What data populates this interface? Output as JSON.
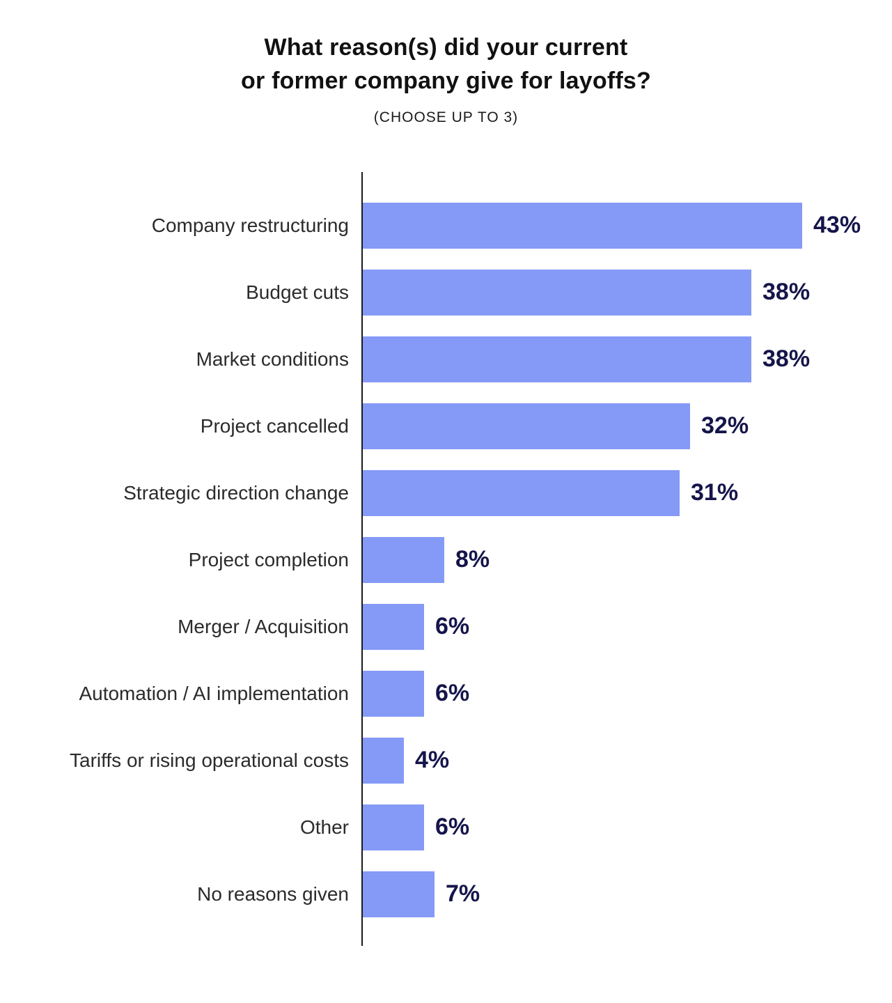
{
  "chart_data": {
    "type": "bar",
    "orientation": "horizontal",
    "title": "What reason(s) did your current\nor former company give for layoffs?",
    "subtitle": "(CHOOSE UP TO 3)",
    "categories": [
      "Company restructuring",
      "Budget cuts",
      "Market conditions",
      "Project cancelled",
      "Strategic direction change",
      "Project completion",
      "Merger / Acquisition",
      "Automation / AI implementation",
      "Tariffs or rising operational costs",
      "Other",
      "No reasons given"
    ],
    "values": [
      43,
      38,
      38,
      32,
      31,
      8,
      6,
      6,
      4,
      6,
      7
    ],
    "value_suffix": "%",
    "xlim": [
      0,
      52
    ],
    "grid": false,
    "legend": false,
    "bar_color": "#8599f6",
    "value_label_color": "#15154b",
    "category_label_color": "#2b2b2b",
    "axis_color": "#1a1a1a",
    "title_color": "#111111",
    "background_color": "#ffffff"
  }
}
